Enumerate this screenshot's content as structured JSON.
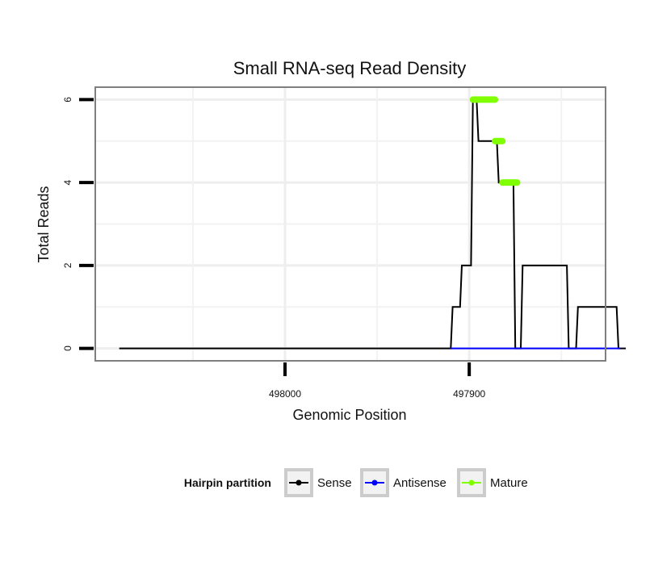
{
  "chart_data": {
    "type": "line",
    "title": "Small RNA-seq Read Density",
    "xlabel": "Genomic Position",
    "ylabel": "Total Reads",
    "x_reversed": true,
    "xlim": [
      498103,
      497826
    ],
    "ylim": [
      -0.3,
      6.3
    ],
    "x_ticks": [
      {
        "value": 498000,
        "label": "498000"
      },
      {
        "value": 497900,
        "label": "497900"
      }
    ],
    "y_ticks": [
      {
        "value": 0,
        "label": "0"
      },
      {
        "value": 2,
        "label": "2"
      },
      {
        "value": 4,
        "label": "4"
      },
      {
        "value": 6,
        "label": "6"
      }
    ],
    "grid": true,
    "legend": {
      "title": "Hairpin partition",
      "position": "bottom",
      "entries": [
        {
          "name": "Sense",
          "color": "#000000"
        },
        {
          "name": "Antisense",
          "color": "#0000ff"
        },
        {
          "name": "Mature",
          "color": "#7fff00"
        }
      ]
    },
    "series": [
      {
        "name": "Sense",
        "color": "#000000",
        "x": [
          498090,
          497910,
          497909,
          497905,
          497904,
          497899,
          497898,
          497896,
          497895,
          497885,
          497884,
          497876,
          497875,
          497872,
          497871,
          497847,
          497846,
          497842,
          497841,
          497820,
          497819,
          497815
        ],
        "y": [
          0,
          0,
          1,
          1,
          2,
          2,
          6,
          6,
          5,
          5,
          4,
          4,
          0,
          0,
          2,
          2,
          0,
          0,
          1,
          1,
          0,
          0
        ]
      },
      {
        "name": "Antisense",
        "color": "#0000ff",
        "x": [
          497910,
          497818
        ],
        "y": [
          0,
          0
        ]
      },
      {
        "name": "Mature",
        "color": "#7fff00",
        "segments": [
          {
            "x": [
              497898,
              497886
            ],
            "y": [
              6,
              6
            ]
          },
          {
            "x": [
              497886,
              497882
            ],
            "y": [
              5,
              5
            ]
          },
          {
            "x": [
              497882,
              497874
            ],
            "y": [
              4,
              4
            ]
          }
        ]
      }
    ]
  }
}
